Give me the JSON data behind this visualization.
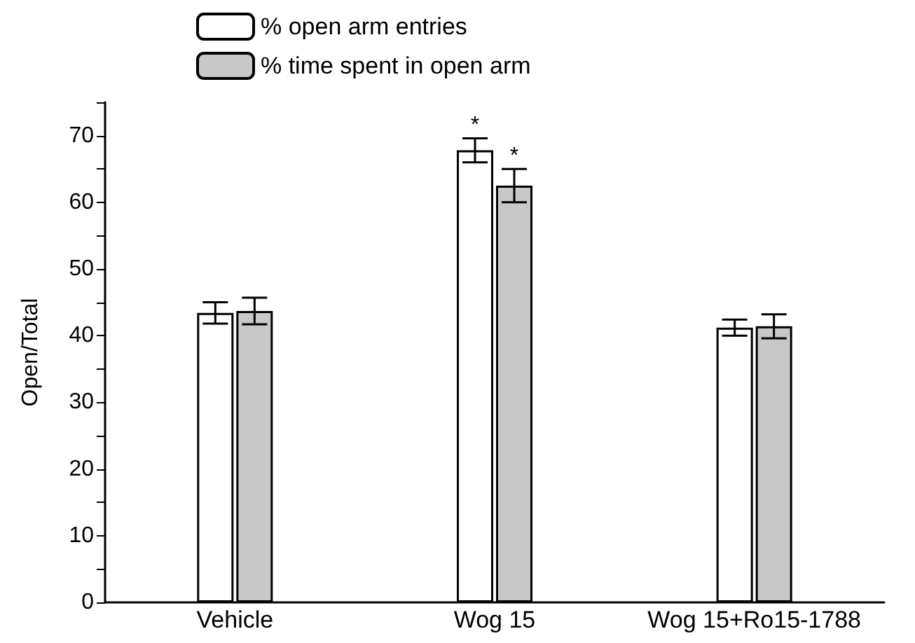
{
  "chart_data": {
    "type": "bar",
    "ylabel": "Open/Total",
    "categories": [
      "Vehicle",
      "Wog 15",
      "Wog 15+Ro15-1788"
    ],
    "series": [
      {
        "name": "% open arm entries",
        "color": "#ffffff",
        "values": [
          43.4,
          67.8,
          41.2
        ],
        "errors": [
          1.6,
          1.8,
          1.2
        ]
      },
      {
        "name": "% time spent in open arm",
        "color": "#c8c8c8",
        "values": [
          43.7,
          62.5,
          41.4
        ],
        "errors": [
          2,
          2.5,
          1.8
        ]
      }
    ],
    "ylim": [
      0,
      75
    ],
    "yticks": [
      0,
      {
        "value": 5,
        "label": null
      },
      10,
      {
        "value": 15,
        "label": null
      },
      20,
      {
        "value": 25,
        "label": null
      },
      30,
      {
        "value": 35,
        "label": null
      },
      40,
      {
        "value": 45,
        "label": null
      },
      50,
      {
        "value": 55,
        "label": null
      },
      60,
      {
        "value": 65,
        "label": null
      },
      70,
      {
        "value": 75,
        "label": null
      }
    ],
    "legend": "top left",
    "grid": false,
    "annotations": [
      {
        "text": "*",
        "x": "Wog 15",
        "y": 67.8
      },
      {
        "text": "*",
        "x": "Wog 15",
        "y": 62.5
      }
    ]
  }
}
